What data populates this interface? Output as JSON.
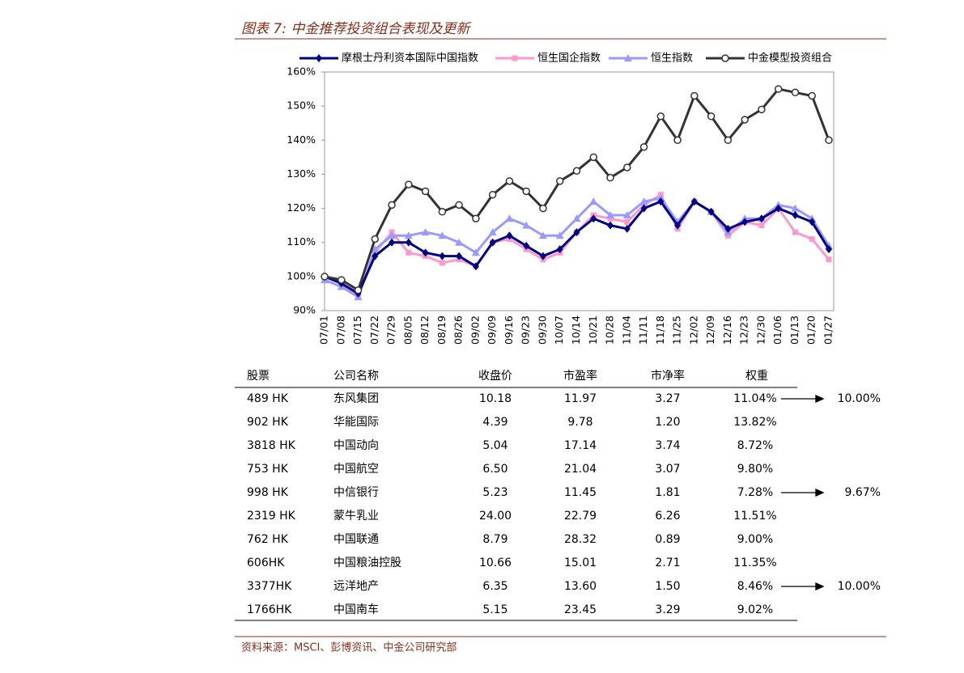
{
  "header": {
    "title": "图表 7: 中金推荐投资组合表现及更新"
  },
  "chart_data": {
    "type": "line",
    "categories": [
      "07/01",
      "07/08",
      "07/15",
      "07/22",
      "07/29",
      "08/05",
      "08/12",
      "08/19",
      "08/26",
      "09/02",
      "09/09",
      "09/16",
      "09/23",
      "09/30",
      "10/07",
      "10/14",
      "10/21",
      "10/28",
      "11/04",
      "11/11",
      "11/18",
      "11/25",
      "12/02",
      "12/09",
      "12/16",
      "12/23",
      "12/30",
      "01/06",
      "01/13",
      "01/20",
      "01/27"
    ],
    "series": [
      {
        "name": "摩根士丹利资本国际中国指数",
        "color": "#000080",
        "marker": "diamond",
        "values": [
          100,
          98,
          95,
          106,
          110,
          110,
          107,
          106,
          106,
          103,
          110,
          112,
          109,
          106,
          108,
          113,
          117,
          115,
          114,
          120,
          122,
          115,
          122,
          119,
          114,
          116,
          117,
          120,
          118,
          116,
          108
        ]
      },
      {
        "name": "恒生国企指数",
        "color": "#ff99cc",
        "marker": "square",
        "values": [
          100,
          98,
          94,
          107,
          113,
          107,
          106,
          104,
          105,
          103,
          110,
          111,
          108,
          105,
          107,
          113,
          118,
          117,
          116,
          121,
          124,
          114,
          122,
          119,
          112,
          116,
          115,
          120,
          113,
          111,
          105
        ]
      },
      {
        "name": "恒生指数",
        "color": "#9999ff",
        "marker": "triangle",
        "values": [
          99,
          97,
          94,
          108,
          112,
          112,
          113,
          112,
          110,
          107,
          113,
          117,
          115,
          112,
          112,
          117,
          122,
          118,
          118,
          122,
          123,
          116,
          122,
          119,
          113,
          117,
          117,
          121,
          120,
          117,
          109
        ]
      },
      {
        "name": "中金模型投资组合",
        "color": "#333333",
        "marker": "circle",
        "values": [
          100,
          99,
          96,
          111,
          121,
          127,
          125,
          119,
          121,
          117,
          124,
          128,
          125,
          120,
          128,
          131,
          135,
          129,
          132,
          138,
          147,
          140,
          153,
          147,
          140,
          146,
          149,
          155,
          154,
          153,
          140
        ]
      }
    ],
    "ylim": [
      90,
      160
    ],
    "yticks": [
      {
        "value": 90,
        "label": "90%"
      },
      {
        "value": 100,
        "label": "100%"
      },
      {
        "value": 110,
        "label": "110%"
      },
      {
        "value": 120,
        "label": "120%"
      },
      {
        "value": 130,
        "label": "130%"
      },
      {
        "value": 140,
        "label": "140%"
      },
      {
        "value": 150,
        "label": "150%"
      },
      {
        "value": 160,
        "label": "160%"
      }
    ],
    "grid": false,
    "legend": "top"
  },
  "table": {
    "headers": [
      "股票",
      "公司名称",
      "收盘价",
      "市盈率",
      "市净率",
      "权重"
    ],
    "rows": [
      {
        "stock": "489 HK",
        "company": "东风集团",
        "close": "10.18",
        "pe": "11.97",
        "pb": "3.27",
        "weight": "11.04%",
        "new_weight": "10.00%"
      },
      {
        "stock": "902 HK",
        "company": "华能国际",
        "close": "4.39",
        "pe": "9.78",
        "pb": "1.20",
        "weight": "13.82%"
      },
      {
        "stock": "3818 HK",
        "company": "中国动向",
        "close": "5.04",
        "pe": "17.14",
        "pb": "3.74",
        "weight": "8.72%"
      },
      {
        "stock": "753 HK",
        "company": "中国航空",
        "close": "6.50",
        "pe": "21.04",
        "pb": "3.07",
        "weight": "9.80%"
      },
      {
        "stock": "998 HK",
        "company": "中信银行",
        "close": "5.23",
        "pe": "11.45",
        "pb": "1.81",
        "weight": "7.28%",
        "new_weight": "9.67%"
      },
      {
        "stock": "2319 HK",
        "company": "蒙牛乳业",
        "close": "24.00",
        "pe": "22.79",
        "pb": "6.26",
        "weight": "11.51%"
      },
      {
        "stock": "762 HK",
        "company": "中国联通",
        "close": "8.79",
        "pe": "28.32",
        "pb": "0.89",
        "weight": "9.00%"
      },
      {
        "stock": "606HK",
        "company": "中国粮油控股",
        "close": "10.66",
        "pe": "15.01",
        "pb": "2.71",
        "weight": "11.35%"
      },
      {
        "stock": "3377HK",
        "company": "远洋地产",
        "close": "6.35",
        "pe": "13.60",
        "pb": "1.50",
        "weight": "8.46%",
        "new_weight": "10.00%"
      },
      {
        "stock": "1766HK",
        "company": "中国南车",
        "close": "5.15",
        "pe": "23.45",
        "pb": "3.29",
        "weight": "9.02%"
      }
    ]
  },
  "footer": {
    "source": "资料来源：MSCI、彭博资讯、中金公司研究部"
  }
}
